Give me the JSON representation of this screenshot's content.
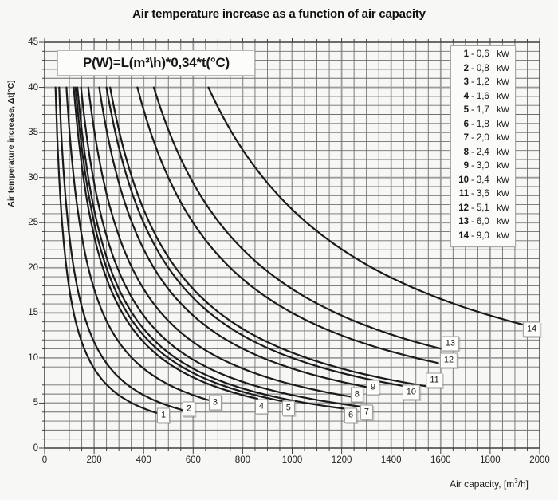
{
  "page": {
    "background": "#f7f7f5"
  },
  "chart_data": {
    "type": "line",
    "title": "Air temperature increase as a function of air capacity",
    "formula": "P(W)=L(m³\\h)*0,34*t(°C)",
    "ylabel": "Air temperature increase, Δt[°C]",
    "xlabel": {
      "prefix": "Air capacity, [m",
      "sup": "3",
      "suffix": "/h]"
    },
    "xlim": [
      0,
      2000
    ],
    "ylim": [
      0,
      45
    ],
    "x_ticks": [
      0,
      200,
      400,
      600,
      800,
      1000,
      1200,
      1400,
      1600,
      1800,
      2000
    ],
    "y_ticks": [
      0,
      5,
      10,
      15,
      20,
      25,
      30,
      35,
      40,
      45
    ],
    "x_minor_step": 50,
    "y_minor_step": 1,
    "grid": "on",
    "legend_position": "top-right",
    "legend_unit": "kW",
    "curve_model": "t(°C) = kW*1000 / (0.34 * L(m³/h))",
    "curve_clip_t_max": 40,
    "series": [
      {
        "n": "1",
        "kw": 0.6,
        "kw_text": "0,6",
        "x_end": 455,
        "label_at": [
          480,
          3.6
        ]
      },
      {
        "n": "2",
        "kw": 0.8,
        "kw_text": "0,8",
        "x_end": 560,
        "label_at": [
          583,
          4.3
        ]
      },
      {
        "n": "3",
        "kw": 1.2,
        "kw_text": "1,2",
        "x_end": 665,
        "label_at": [
          689,
          5.0
        ]
      },
      {
        "n": "4",
        "kw": 1.6,
        "kw_text": "1,6",
        "x_end": 860,
        "label_at": [
          876,
          4.6
        ]
      },
      {
        "n": "5",
        "kw": 1.7,
        "kw_text": "1,7",
        "x_end": 970,
        "label_at": [
          985,
          4.4
        ]
      },
      {
        "n": "6",
        "kw": 1.8,
        "kw_text": "1,8",
        "x_end": 1230,
        "label_at": [
          1237,
          3.6
        ]
      },
      {
        "n": "7",
        "kw": 2.0,
        "kw_text": "2,0",
        "x_end": 1290,
        "label_at": [
          1301,
          4.0
        ]
      },
      {
        "n": "8",
        "kw": 2.4,
        "kw_text": "2,4",
        "x_end": 1265,
        "label_at": [
          1262,
          5.9
        ]
      },
      {
        "n": "9",
        "kw": 3.0,
        "kw_text": "3,0",
        "x_end": 1330,
        "label_at": [
          1327,
          6.7
        ]
      },
      {
        "n": "10",
        "kw": 3.4,
        "kw_text": "3,4",
        "x_end": 1450,
        "label_at": [
          1481,
          6.2
        ]
      },
      {
        "n": "11",
        "kw": 3.6,
        "kw_text": "3,6",
        "x_end": 1545,
        "label_at": [
          1575,
          7.5
        ]
      },
      {
        "n": "12",
        "kw": 5.1,
        "kw_text": "5,1",
        "x_end": 1590,
        "label_at": [
          1633,
          9.7
        ]
      },
      {
        "n": "13",
        "kw": 6.0,
        "kw_text": "6,0",
        "x_end": 1600,
        "label_at": [
          1639,
          11.6
        ]
      },
      {
        "n": "14",
        "kw": 9.0,
        "kw_text": "9,0",
        "x_end": 1940,
        "label_at": [
          1968,
          13.2
        ]
      }
    ],
    "colors": {
      "curve": "#1b1b1b",
      "grid_minor": "#6f6f6f",
      "grid_major": "#9c9c9c",
      "axis": "#3f3f3f",
      "label_box_border": "#9a9a96"
    }
  }
}
